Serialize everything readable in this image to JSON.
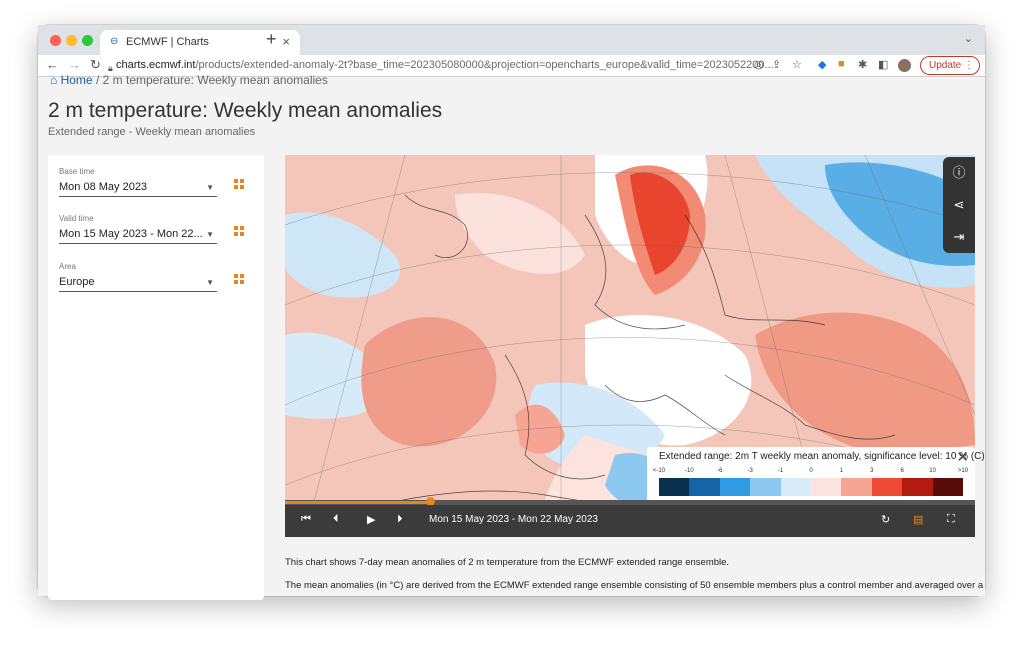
{
  "browser": {
    "tab_title": "ECMWF | Charts",
    "url_host": "charts.ecmwf.int",
    "url_path": "/products/extended-anomaly-2t?base_time=202305080000&projection=opencharts_europe&valid_time=2023052200...",
    "update_label": "Update"
  },
  "page": {
    "breadcrumb_home": "Home",
    "breadcrumb_sep": "/",
    "breadcrumb_current": "2 m temperature: Weekly mean anomalies",
    "title": "2 m temperature: Weekly mean anomalies",
    "subtitle": "Extended range - Weekly mean anomalies"
  },
  "filters": {
    "base_time": {
      "label": "Base time",
      "value": "Mon 08 May 2023"
    },
    "valid_time": {
      "label": "Valid time",
      "value": "Mon 15 May 2023 - Mon 22..."
    },
    "area": {
      "label": "Area",
      "value": "Europe"
    }
  },
  "legend": {
    "title": "Extended range: 2m T weekly mean anomaly, significance level: 10 % (C)",
    "ticks": [
      "<-10",
      "-10",
      "-6",
      "-3",
      "-1",
      "0",
      "1",
      "3",
      "6",
      "10",
      ">10"
    ],
    "colors": [
      "#08304f",
      "#1664a8",
      "#2f9be3",
      "#8cc8f0",
      "#d8ecfa",
      "#fde3dd",
      "#f7a593",
      "#ef4a33",
      "#b31b10",
      "#5a0c08"
    ]
  },
  "player": {
    "date_range": "Mon 15 May 2023 - Mon 22 May 2023",
    "progress": 0.21
  },
  "description": {
    "p1": "This chart shows 7-day mean anomalies of 2 m temperature from the ECMWF extended range ensemble.",
    "p2": "The mean anomalies (in °C) are derived from the ECMWF extended range ensemble consisting of 50 ensemble members plus a control member and averaged over a"
  }
}
